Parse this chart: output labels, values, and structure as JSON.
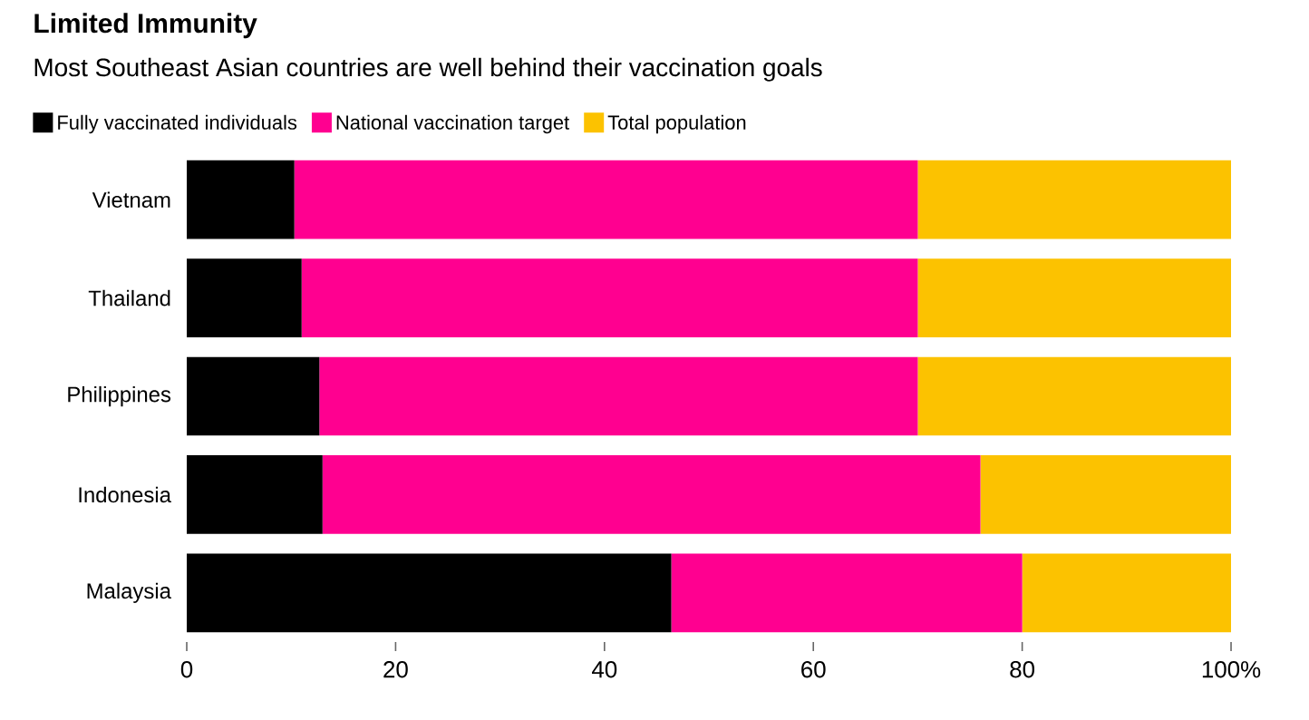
{
  "chart_data": {
    "type": "bar",
    "orientation": "horizontal",
    "stacked": true,
    "title": "Limited Immunity",
    "subtitle": "Most Southeast Asian countries are well behind their vaccination goals",
    "categories": [
      "Vietnam",
      "Thailand",
      "Philippines",
      "Indonesia",
      "Malaysia"
    ],
    "series": [
      {
        "name": "Fully vaccinated individuals",
        "color": "#000000",
        "values": [
          10.3,
          11,
          12.7,
          13,
          46.4
        ]
      },
      {
        "name": "National vaccination target",
        "color": "#ff0090",
        "values": [
          59.7,
          59,
          57.3,
          63,
          33.6
        ]
      },
      {
        "name": "Total population",
        "color": "#fcc200",
        "values": [
          30,
          30,
          30,
          24,
          20
        ]
      }
    ],
    "xlim": [
      0,
      100
    ],
    "xticks": [
      0,
      20,
      40,
      60,
      80,
      {
        "value": 100,
        "label": "100%"
      }
    ],
    "legend": "top"
  }
}
